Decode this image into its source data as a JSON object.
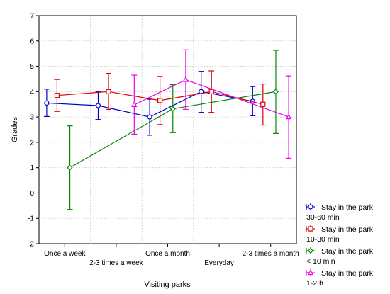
{
  "chart_data": {
    "type": "line",
    "title": "",
    "xlabel": "Visiting parks",
    "ylabel": "Grades",
    "ylim": [
      -2,
      7
    ],
    "yticks": [
      -2,
      -1,
      0,
      1,
      2,
      3,
      4,
      5,
      6,
      7
    ],
    "categories": [
      "Once a week",
      "2-3 times a week",
      "Once a month",
      "Everyday",
      "2-3 times a month"
    ],
    "grid": true,
    "legend_position": "bottom-right",
    "series": [
      {
        "name": "Stay in the park 30-60 min",
        "legend_line1": "Stay in the park",
        "legend_line2": "30-60 min",
        "color": "#0000cc",
        "marker": "circle",
        "mean": [
          3.55,
          3.45,
          3.0,
          4.0,
          3.62
        ],
        "lower": [
          3.02,
          2.9,
          2.28,
          3.18,
          3.05
        ],
        "upper": [
          4.1,
          4.0,
          3.7,
          4.8,
          4.2
        ]
      },
      {
        "name": "Stay in the park 10-30 min",
        "legend_line1": "Stay in the park",
        "legend_line2": "10-30 min",
        "color": "#dd0000",
        "marker": "square",
        "mean": [
          3.85,
          4.0,
          3.65,
          4.0,
          3.5
        ],
        "lower": [
          3.22,
          3.3,
          2.7,
          3.18,
          2.68
        ],
        "upper": [
          4.48,
          4.72,
          4.6,
          4.82,
          4.3
        ]
      },
      {
        "name": "Stay in the park < 10 min",
        "legend_line1": "Stay in the park",
        "legend_line2": "< 10 min",
        "color": "#008800",
        "marker": "diamond",
        "mean": [
          1.0,
          null,
          3.32,
          null,
          4.0
        ],
        "lower": [
          -0.65,
          null,
          2.38,
          null,
          2.35
        ],
        "upper": [
          2.65,
          null,
          4.27,
          null,
          5.63
        ]
      },
      {
        "name": "Stay in the park 1-2 h",
        "legend_line1": "Stay in the park",
        "legend_line2": "1-2 h",
        "color": "#ee00ee",
        "marker": "triangle",
        "mean": [
          null,
          3.48,
          4.47,
          null,
          3.0
        ],
        "lower": [
          null,
          2.32,
          3.3,
          null,
          1.37
        ],
        "upper": [
          null,
          4.65,
          5.65,
          null,
          4.62
        ]
      }
    ]
  }
}
